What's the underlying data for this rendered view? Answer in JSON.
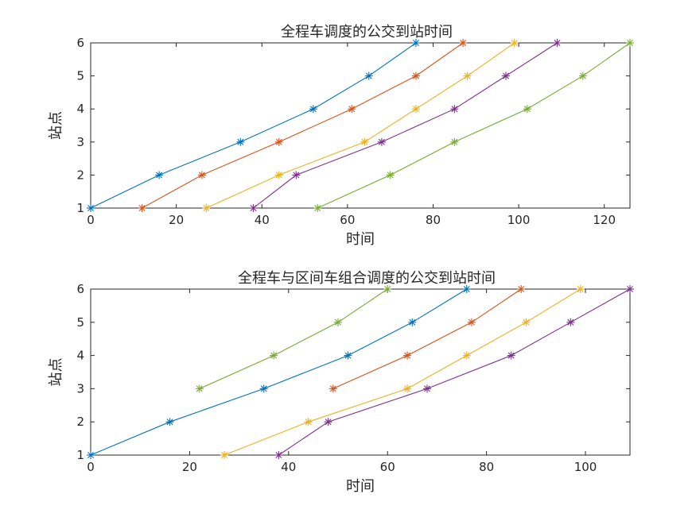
{
  "chart_data": [
    {
      "type": "line",
      "title": "全程车调度的公交到站时间",
      "xlabel": "时间",
      "ylabel": "站点",
      "xlim": [
        0,
        126
      ],
      "ylim": [
        1,
        6
      ],
      "xticks": [
        0,
        20,
        40,
        60,
        80,
        100,
        120
      ],
      "yticks": [
        1,
        2,
        3,
        4,
        5,
        6
      ],
      "grid": false,
      "marker": "asterisk",
      "series": [
        {
          "color": "#0072BD",
          "x": [
            0,
            16,
            35,
            52,
            65,
            76
          ],
          "y": [
            1,
            2,
            3,
            4,
            5,
            6
          ]
        },
        {
          "color": "#D95319",
          "x": [
            12,
            26,
            44,
            61,
            76,
            87
          ],
          "y": [
            1,
            2,
            3,
            4,
            5,
            6
          ]
        },
        {
          "color": "#EDB120",
          "x": [
            27,
            44,
            64,
            76,
            88,
            99
          ],
          "y": [
            1,
            2,
            3,
            4,
            5,
            6
          ]
        },
        {
          "color": "#7E2F8E",
          "x": [
            38,
            48,
            68,
            85,
            97,
            109
          ],
          "y": [
            1,
            2,
            3,
            4,
            5,
            6
          ]
        },
        {
          "color": "#77AC30",
          "x": [
            53,
            70,
            85,
            102,
            115,
            126
          ],
          "y": [
            1,
            2,
            3,
            4,
            5,
            6
          ]
        }
      ]
    },
    {
      "type": "line",
      "title": "全程车与区间车组合调度的公交到站时间",
      "xlabel": "时间",
      "ylabel": "站点",
      "xlim": [
        0,
        109
      ],
      "ylim": [
        1,
        6
      ],
      "xticks": [
        0,
        20,
        40,
        60,
        80,
        100
      ],
      "yticks": [
        1,
        2,
        3,
        4,
        5,
        6
      ],
      "grid": false,
      "marker": "asterisk",
      "series": [
        {
          "color": "#0072BD",
          "x": [
            0,
            16,
            35,
            52,
            65,
            76
          ],
          "y": [
            1,
            2,
            3,
            4,
            5,
            6
          ]
        },
        {
          "color": "#D95319",
          "x": [
            49,
            64,
            77,
            87
          ],
          "y": [
            3,
            4,
            5,
            6
          ]
        },
        {
          "color": "#EDB120",
          "x": [
            27,
            44,
            64,
            76,
            88,
            99
          ],
          "y": [
            1,
            2,
            3,
            4,
            5,
            6
          ]
        },
        {
          "color": "#7E2F8E",
          "x": [
            38,
            48,
            68,
            85,
            97,
            109
          ],
          "y": [
            1,
            2,
            3,
            4,
            5,
            6
          ]
        },
        {
          "color": "#77AC30",
          "x": [
            22,
            37,
            50,
            60
          ],
          "y": [
            3,
            4,
            5,
            6
          ]
        }
      ]
    }
  ]
}
